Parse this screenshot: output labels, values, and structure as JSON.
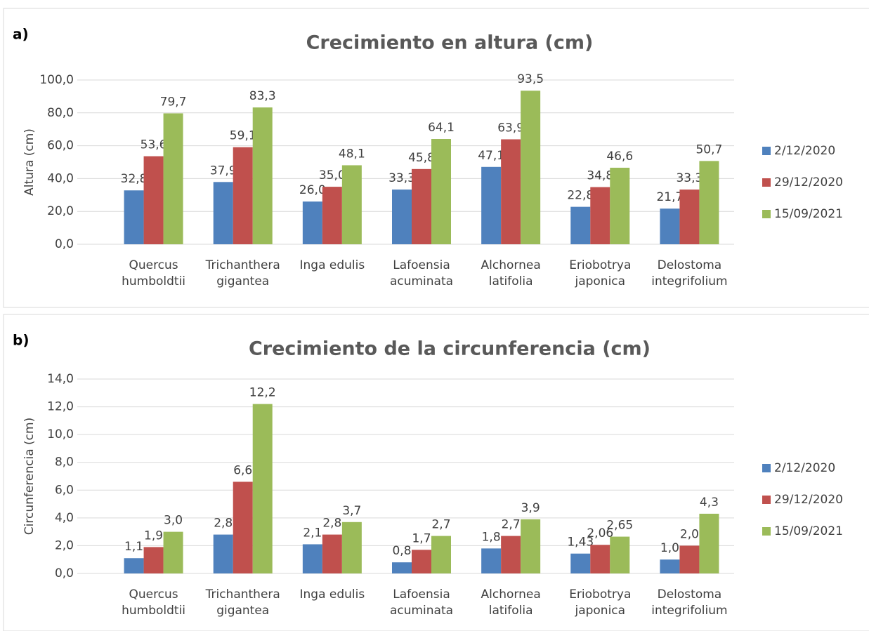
{
  "chart_data": [
    {
      "type": "bar",
      "label": "a)",
      "title": "Crecimiento en altura (cm)",
      "y_label": "Altura (cm)",
      "categories": [
        "Quercus\nhumboldtii",
        "Trichanthera\ngigantea",
        "Inga edulis",
        "Lafoensia\nacuminata",
        "Alchornea\nlatifolia",
        "Eriobotrya\njaponica",
        "Delostoma\nintegrifolium"
      ],
      "series": [
        {
          "name": "2/12/2020",
          "color": "#4f81bd",
          "values": [
            32.8,
            37.9,
            26.0,
            33.3,
            47.1,
            22.8,
            21.7
          ],
          "value_labels": [
            "32,8",
            "37,9",
            "26,0",
            "33,3",
            "47,1",
            "22,8",
            "21,7"
          ]
        },
        {
          "name": "29/12/2020",
          "color": "#c0504d",
          "values": [
            53.6,
            59.1,
            35.0,
            45.8,
            63.9,
            34.8,
            33.3
          ],
          "value_labels": [
            "53,6",
            "59,1",
            "35,0",
            "45,8",
            "63,9",
            "34,8",
            "33,3"
          ]
        },
        {
          "name": "15/09/2021",
          "color": "#9bbb59",
          "values": [
            79.7,
            83.3,
            48.1,
            64.1,
            93.5,
            46.6,
            50.7
          ],
          "value_labels": [
            "79,7",
            "83,3",
            "48,1",
            "64,1",
            "93,5",
            "46,6",
            "50,7"
          ]
        }
      ],
      "ylim": [
        0,
        100
      ],
      "yticks": [
        {
          "value": 0,
          "label": "0,0"
        },
        {
          "value": 20,
          "label": "20,0"
        },
        {
          "value": 40,
          "label": "40,0"
        },
        {
          "value": 60,
          "label": "60,0"
        },
        {
          "value": 80,
          "label": "80,0"
        },
        {
          "value": 100,
          "label": "100,0"
        }
      ],
      "grid": true,
      "legend": "right"
    },
    {
      "type": "bar",
      "label": "b)",
      "title": "Crecimiento de la circunferencia (cm)",
      "y_label": "Circunferencia (cm)",
      "categories": [
        "Quercus\nhumboldtii",
        "Trichanthera\ngigantea",
        "Inga edulis",
        "Lafoensia\nacuminata",
        "Alchornea\nlatifolia",
        "Eriobotrya\njaponica",
        "Delostoma\nintegrifolium"
      ],
      "series": [
        {
          "name": "2/12/2020",
          "color": "#4f81bd",
          "values": [
            1.1,
            2.8,
            2.1,
            0.8,
            1.8,
            1.43,
            1.0
          ],
          "value_labels": [
            "1,1",
            "2,8",
            "2,1",
            "0,8",
            "1,8",
            "1,43",
            "1,0"
          ]
        },
        {
          "name": "29/12/2020",
          "color": "#c0504d",
          "values": [
            1.9,
            6.6,
            2.8,
            1.7,
            2.7,
            2.06,
            2.0
          ],
          "value_labels": [
            "1,9",
            "6,6",
            "2,8",
            "1,7",
            "2,7",
            "2,06",
            "2,0"
          ]
        },
        {
          "name": "15/09/2021",
          "color": "#9bbb59",
          "values": [
            3.0,
            12.2,
            3.7,
            2.7,
            3.9,
            2.65,
            4.3
          ],
          "value_labels": [
            "3,0",
            "12,2",
            "3,7",
            "2,7",
            "3,9",
            "2,65",
            "4,3"
          ]
        }
      ],
      "ylim": [
        0,
        14
      ],
      "yticks": [
        {
          "value": 0,
          "label": "0,0"
        },
        {
          "value": 2,
          "label": "2,0"
        },
        {
          "value": 4,
          "label": "4,0"
        },
        {
          "value": 6,
          "label": "6,0"
        },
        {
          "value": 8,
          "label": "8,0"
        },
        {
          "value": 10,
          "label": "10,0"
        },
        {
          "value": 12,
          "label": "12,0"
        },
        {
          "value": 14,
          "label": "14,0"
        }
      ],
      "grid": true,
      "legend": "right"
    }
  ]
}
